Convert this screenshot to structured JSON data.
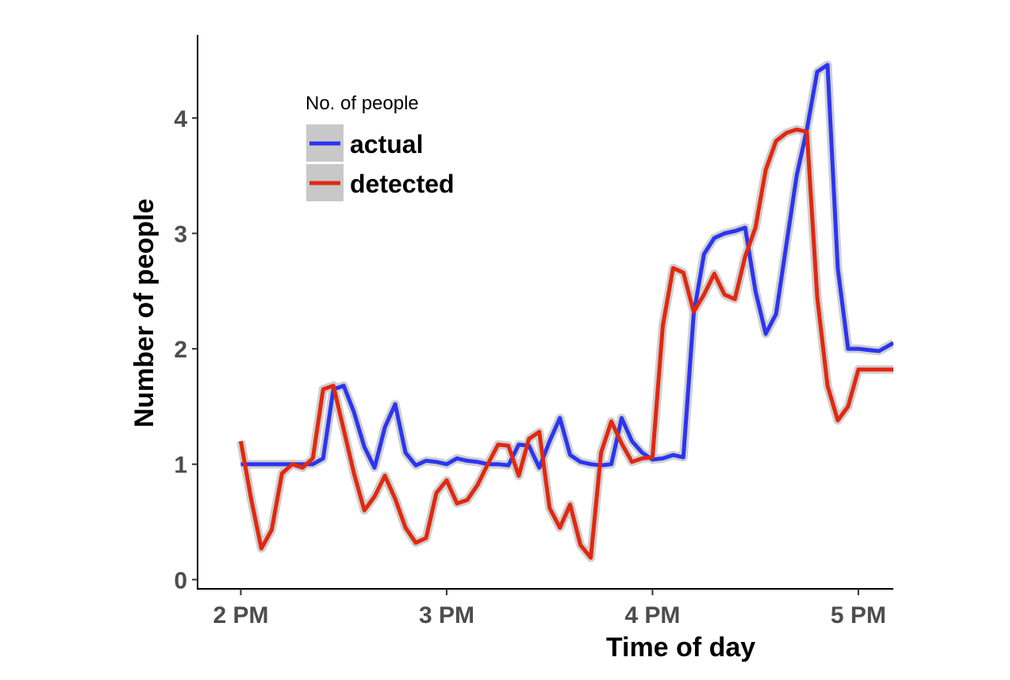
{
  "chart_data": {
    "type": "line",
    "xlabel": "Time of day",
    "ylabel": "Number of people",
    "x_ticks": [
      "2 PM",
      "3 PM",
      "4 PM",
      "5 PM"
    ],
    "x_tick_values": [
      14.0,
      15.0,
      16.0,
      17.0
    ],
    "y_ticks": [
      "0",
      "1",
      "2",
      "3",
      "4"
    ],
    "y_tick_values": [
      0,
      1,
      2,
      3,
      4
    ],
    "xlim": [
      13.79,
      17.17
    ],
    "ylim": [
      -0.08,
      4.72
    ],
    "grid": false,
    "legend": {
      "title": "No. of people",
      "position": "top-left"
    },
    "series": [
      {
        "name": "actual",
        "color": "#2b35f2",
        "x": [
          14.0,
          14.05,
          14.1,
          14.15,
          14.2,
          14.25,
          14.3,
          14.35,
          14.4,
          14.45,
          14.5,
          14.55,
          14.6,
          14.65,
          14.7,
          14.75,
          14.8,
          14.85,
          14.9,
          14.95,
          15.0,
          15.05,
          15.1,
          15.15,
          15.2,
          15.25,
          15.3,
          15.35,
          15.4,
          15.45,
          15.5,
          15.55,
          15.6,
          15.65,
          15.7,
          15.75,
          15.8,
          15.85,
          15.9,
          15.95,
          16.0,
          16.05,
          16.1,
          16.15,
          16.2,
          16.25,
          16.3,
          16.35,
          16.4,
          16.45,
          16.5,
          16.55,
          16.6,
          16.65,
          16.7,
          16.75,
          16.8,
          16.85,
          16.9,
          16.95,
          17.0,
          17.05,
          17.1,
          17.17
        ],
        "y": [
          1.0,
          1.0,
          1.0,
          1.0,
          1.0,
          1.0,
          1.0,
          1.0,
          1.05,
          1.65,
          1.68,
          1.45,
          1.15,
          0.97,
          1.32,
          1.52,
          1.1,
          0.99,
          1.03,
          1.02,
          1.0,
          1.05,
          1.03,
          1.02,
          1.0,
          1.0,
          0.99,
          1.17,
          1.16,
          0.97,
          1.2,
          1.4,
          1.08,
          1.02,
          1.0,
          0.99,
          1.0,
          1.4,
          1.2,
          1.1,
          1.04,
          1.05,
          1.08,
          1.06,
          2.3,
          2.82,
          2.96,
          3.0,
          3.02,
          3.05,
          2.5,
          2.13,
          2.3,
          2.9,
          3.5,
          3.9,
          4.4,
          4.46,
          2.7,
          2.0,
          2.0,
          1.99,
          1.98,
          2.05
        ]
      },
      {
        "name": "detected",
        "color": "#e2280f",
        "x": [
          14.0,
          14.05,
          14.1,
          14.15,
          14.2,
          14.25,
          14.3,
          14.35,
          14.4,
          14.45,
          14.5,
          14.55,
          14.6,
          14.65,
          14.7,
          14.75,
          14.8,
          14.85,
          14.9,
          14.95,
          15.0,
          15.05,
          15.1,
          15.15,
          15.2,
          15.25,
          15.3,
          15.35,
          15.4,
          15.45,
          15.5,
          15.55,
          15.6,
          15.65,
          15.7,
          15.75,
          15.8,
          15.85,
          15.9,
          15.95,
          16.0,
          16.05,
          16.1,
          16.15,
          16.2,
          16.25,
          16.3,
          16.35,
          16.4,
          16.45,
          16.5,
          16.55,
          16.6,
          16.65,
          16.7,
          16.75,
          16.8,
          16.85,
          16.9,
          16.95,
          17.0,
          17.05,
          17.1,
          17.17
        ],
        "y": [
          1.2,
          0.7,
          0.27,
          0.43,
          0.92,
          1.0,
          0.97,
          1.05,
          1.65,
          1.68,
          1.3,
          0.92,
          0.6,
          0.72,
          0.9,
          0.7,
          0.45,
          0.32,
          0.36,
          0.75,
          0.86,
          0.66,
          0.69,
          0.82,
          1.0,
          1.17,
          1.16,
          0.9,
          1.22,
          1.28,
          0.62,
          0.45,
          0.65,
          0.3,
          0.19,
          1.1,
          1.37,
          1.18,
          1.02,
          1.05,
          1.06,
          2.2,
          2.7,
          2.66,
          2.32,
          2.47,
          2.65,
          2.47,
          2.43,
          2.8,
          3.05,
          3.55,
          3.8,
          3.87,
          3.9,
          3.88,
          2.45,
          1.68,
          1.38,
          1.5,
          1.82,
          1.82,
          1.82,
          1.82
        ]
      }
    ]
  }
}
